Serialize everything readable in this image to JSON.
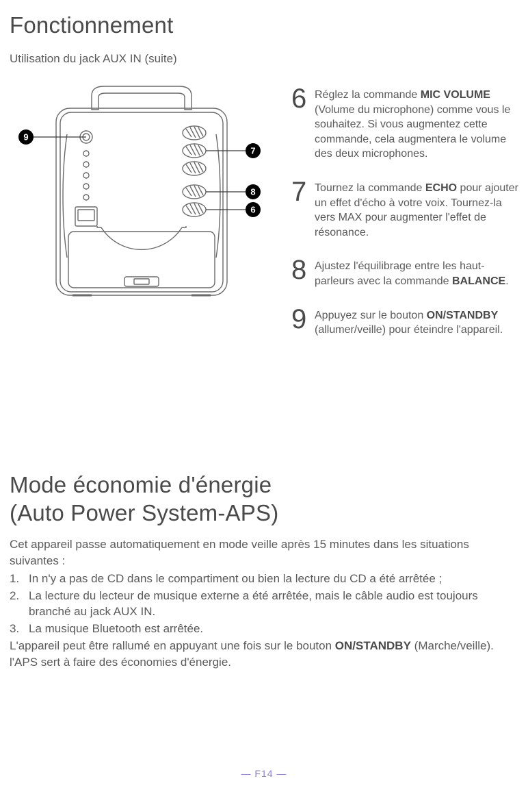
{
  "title1": "Fonctionnement",
  "subtitle": "Utilisation du jack AUX IN (suite)",
  "callouts": {
    "c6": "6",
    "c7": "7",
    "c8": "8",
    "c9": "9"
  },
  "steps": [
    {
      "num": "6",
      "html": "Réglez la commande <b>MIC VOLUME</b> (Volume du microphone) comme vous le souhaitez. Si vous augmentez cette commande, cela augmentera le volume des deux microphones."
    },
    {
      "num": "7",
      "html": "Tournez la commande <b>ECHO</b> pour ajouter un effet d'écho à votre voix. Tournez-la vers MAX pour augmenter l'effet de résonance."
    },
    {
      "num": "8",
      "html": "Ajustez l'équilibrage entre les haut-parleurs avec la commande <b>BALANCE</b>."
    },
    {
      "num": "9",
      "html": "Appuyez sur le bouton <b>ON/STANDBY</b> (allumer/veille) pour éteindre l'appareil."
    }
  ],
  "title2a": "Mode économie d'énergie",
  "title2b": "(Auto Power System-APS)",
  "intro": "Cet appareil passe automatiquement en mode veille après 15 minutes dans les situations suivantes :",
  "list": [
    "In n'y a pas de CD dans le compartiment ou bien la lecture du CD a été arrêtée ;",
    "La lecture du lecteur de musique externe a été arrêtée, mais le câble audio est toujours branché au jack AUX IN.",
    "La musique Bluetooth est arrêtée."
  ],
  "outro1": "L'appareil peut être rallumé en appuyant une fois sur le bouton <b>ON/STANDBY</b> (Marche/veille).",
  "outro2": "l'APS sert à faire des économies d'énergie.",
  "pagenum": "— F14 —",
  "diagram": {
    "stroke": "#6a6a6a",
    "fill": "#ffffff",
    "callout_bg": "#000000",
    "callout_fg": "#ffffff",
    "callout_r": 11
  }
}
